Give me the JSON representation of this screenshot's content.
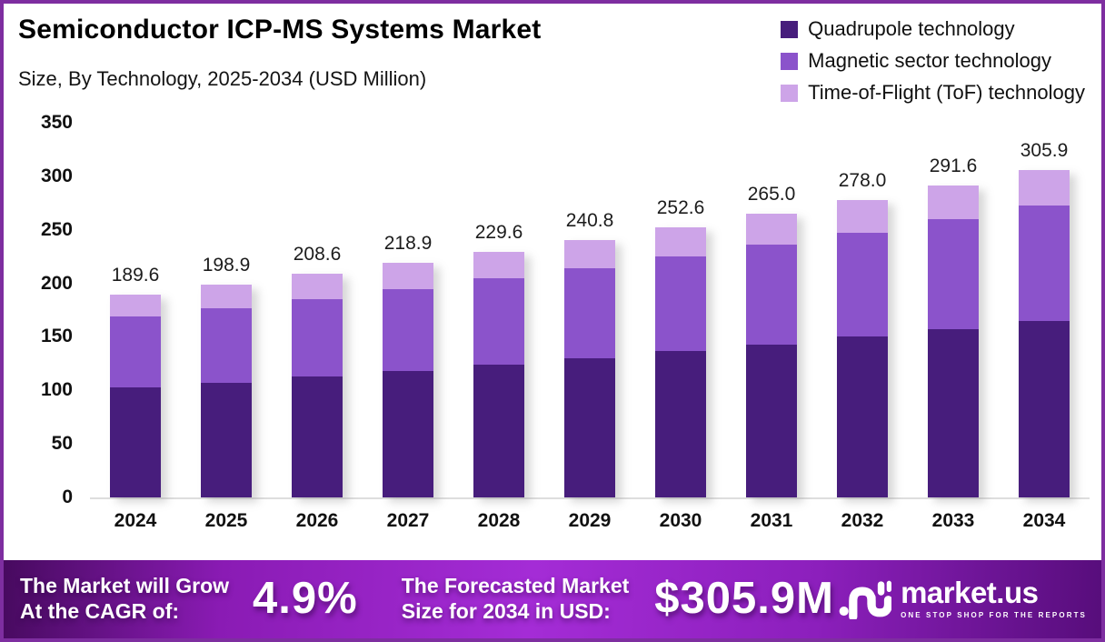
{
  "frame": {
    "border_color": "#7E2EA0",
    "background": "#ffffff"
  },
  "header": {
    "title": "Semiconductor ICP-MS Systems Market",
    "subtitle": "Size, By Technology, 2025-2034 (USD Million)"
  },
  "legend": {
    "items": [
      {
        "label": "Quadrupole technology",
        "color": "#471D7C"
      },
      {
        "label": "Magnetic sector technology",
        "color": "#8B53CB"
      },
      {
        "label": "Time-of-Flight (ToF) technology",
        "color": "#CDA4E8"
      }
    ]
  },
  "chart_data": {
    "type": "bar",
    "stacked": true,
    "title": "Semiconductor ICP-MS Systems Market Size, By Technology, 2025-2034 (USD Million)",
    "categories": [
      "2024",
      "2025",
      "2026",
      "2027",
      "2028",
      "2029",
      "2030",
      "2031",
      "2032",
      "2033",
      "2034"
    ],
    "series": [
      {
        "name": "Quadrupole technology",
        "color": "#471D7C",
        "values": [
          102.4,
          107.4,
          112.6,
          118.2,
          124.0,
          130.0,
          136.4,
          143.1,
          150.1,
          157.5,
          165.2
        ]
      },
      {
        "name": "Magnetic sector technology",
        "color": "#8B53CB",
        "values": [
          66.4,
          69.6,
          73.0,
          76.6,
          80.4,
          84.3,
          88.4,
          92.8,
          97.3,
          102.1,
          107.1
        ]
      },
      {
        "name": "Time-of-Flight (ToF) technology",
        "color": "#CDA4E8",
        "values": [
          20.8,
          21.9,
          23.0,
          24.1,
          25.2,
          26.5,
          27.8,
          29.1,
          30.6,
          32.0,
          33.6
        ]
      }
    ],
    "totals": [
      189.6,
      198.9,
      208.6,
      218.9,
      229.6,
      240.8,
      252.6,
      265.0,
      278.0,
      291.6,
      305.9
    ],
    "total_labels": [
      "189.6",
      "198.9",
      "208.6",
      "218.9",
      "229.6",
      "240.8",
      "252.6",
      "265.0",
      "278.0",
      "291.6",
      "305.9"
    ],
    "yticks": [
      0,
      50,
      100,
      150,
      200,
      250,
      300,
      350
    ],
    "ylim": [
      0,
      350
    ],
    "xlabel": "",
    "ylabel": "",
    "grid": false,
    "legend_position": "top-right"
  },
  "banner": {
    "stat1": {
      "label_line1": "The Market will Grow",
      "label_line2": "At the CAGR of:",
      "value": "4.9%"
    },
    "stat2": {
      "label_line1": "The Forecasted Market",
      "label_line2": "Size for 2034 in USD:",
      "value": "$305.9M"
    },
    "logo": {
      "name": "market.us",
      "tagline": "ONE STOP SHOP FOR THE REPORTS"
    },
    "gradient": [
      "#470A5F",
      "#A42CD6",
      "#570D7B"
    ],
    "bottom_strip_color": "#241233"
  }
}
